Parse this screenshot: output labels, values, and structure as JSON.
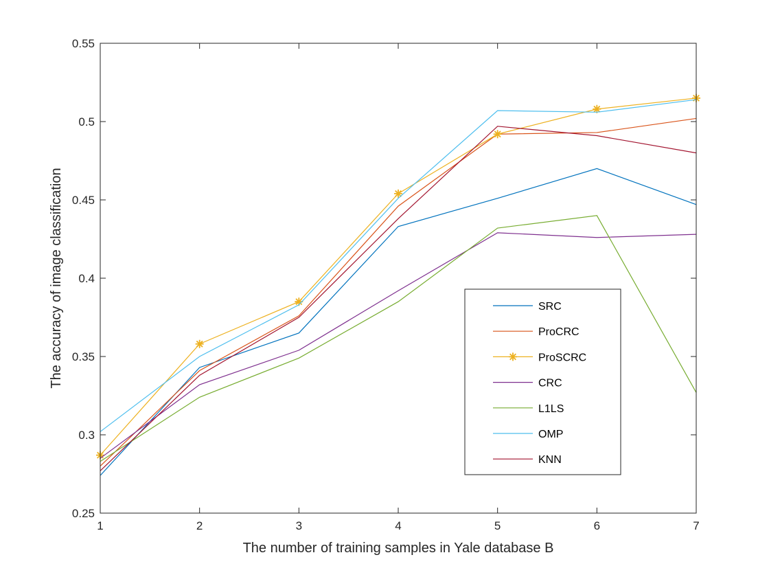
{
  "chart_data": {
    "type": "line",
    "title": "",
    "xlabel": "The number of training samples in Yale database B",
    "ylabel": "The accuracy of image classification",
    "xlim": [
      1,
      7
    ],
    "ylim": [
      0.25,
      0.55
    ],
    "xticks": [
      1,
      2,
      3,
      4,
      5,
      6,
      7
    ],
    "yticks": [
      0.25,
      0.3,
      0.35,
      0.4,
      0.45,
      0.5,
      0.55
    ],
    "ytick_labels": [
      "0.25",
      "0.3",
      "0.35",
      "0.4",
      "0.45",
      "0.5",
      "0.55"
    ],
    "grid": false,
    "legend_position": "lower-right",
    "x": [
      1,
      2,
      3,
      4,
      5,
      6,
      7
    ],
    "series": [
      {
        "name": "SRC",
        "color": "#0072BD",
        "marker": "none",
        "values": [
          0.274,
          0.343,
          0.365,
          0.433,
          0.451,
          0.47,
          0.447
        ]
      },
      {
        "name": "ProCRC",
        "color": "#D95319",
        "marker": "none",
        "values": [
          0.28,
          0.341,
          0.376,
          0.446,
          0.492,
          0.493,
          0.502
        ]
      },
      {
        "name": "ProSCRC",
        "color": "#EDB120",
        "marker": "asterisk",
        "values": [
          0.287,
          0.358,
          0.385,
          0.454,
          0.492,
          0.508,
          0.515
        ]
      },
      {
        "name": "CRC",
        "color": "#7E2F8E",
        "marker": "none",
        "values": [
          0.285,
          0.332,
          0.354,
          0.392,
          0.429,
          0.426,
          0.428
        ]
      },
      {
        "name": "L1LS",
        "color": "#77AC30",
        "marker": "none",
        "values": [
          0.283,
          0.324,
          0.349,
          0.385,
          0.432,
          0.44,
          0.327
        ]
      },
      {
        "name": "OMP",
        "color": "#4DBEEE",
        "marker": "none",
        "values": [
          0.302,
          0.35,
          0.383,
          0.451,
          0.507,
          0.506,
          0.514
        ]
      },
      {
        "name": "KNN",
        "color": "#A2142F",
        "marker": "none",
        "values": [
          0.277,
          0.338,
          0.375,
          0.438,
          0.497,
          0.491,
          0.48
        ]
      }
    ]
  }
}
